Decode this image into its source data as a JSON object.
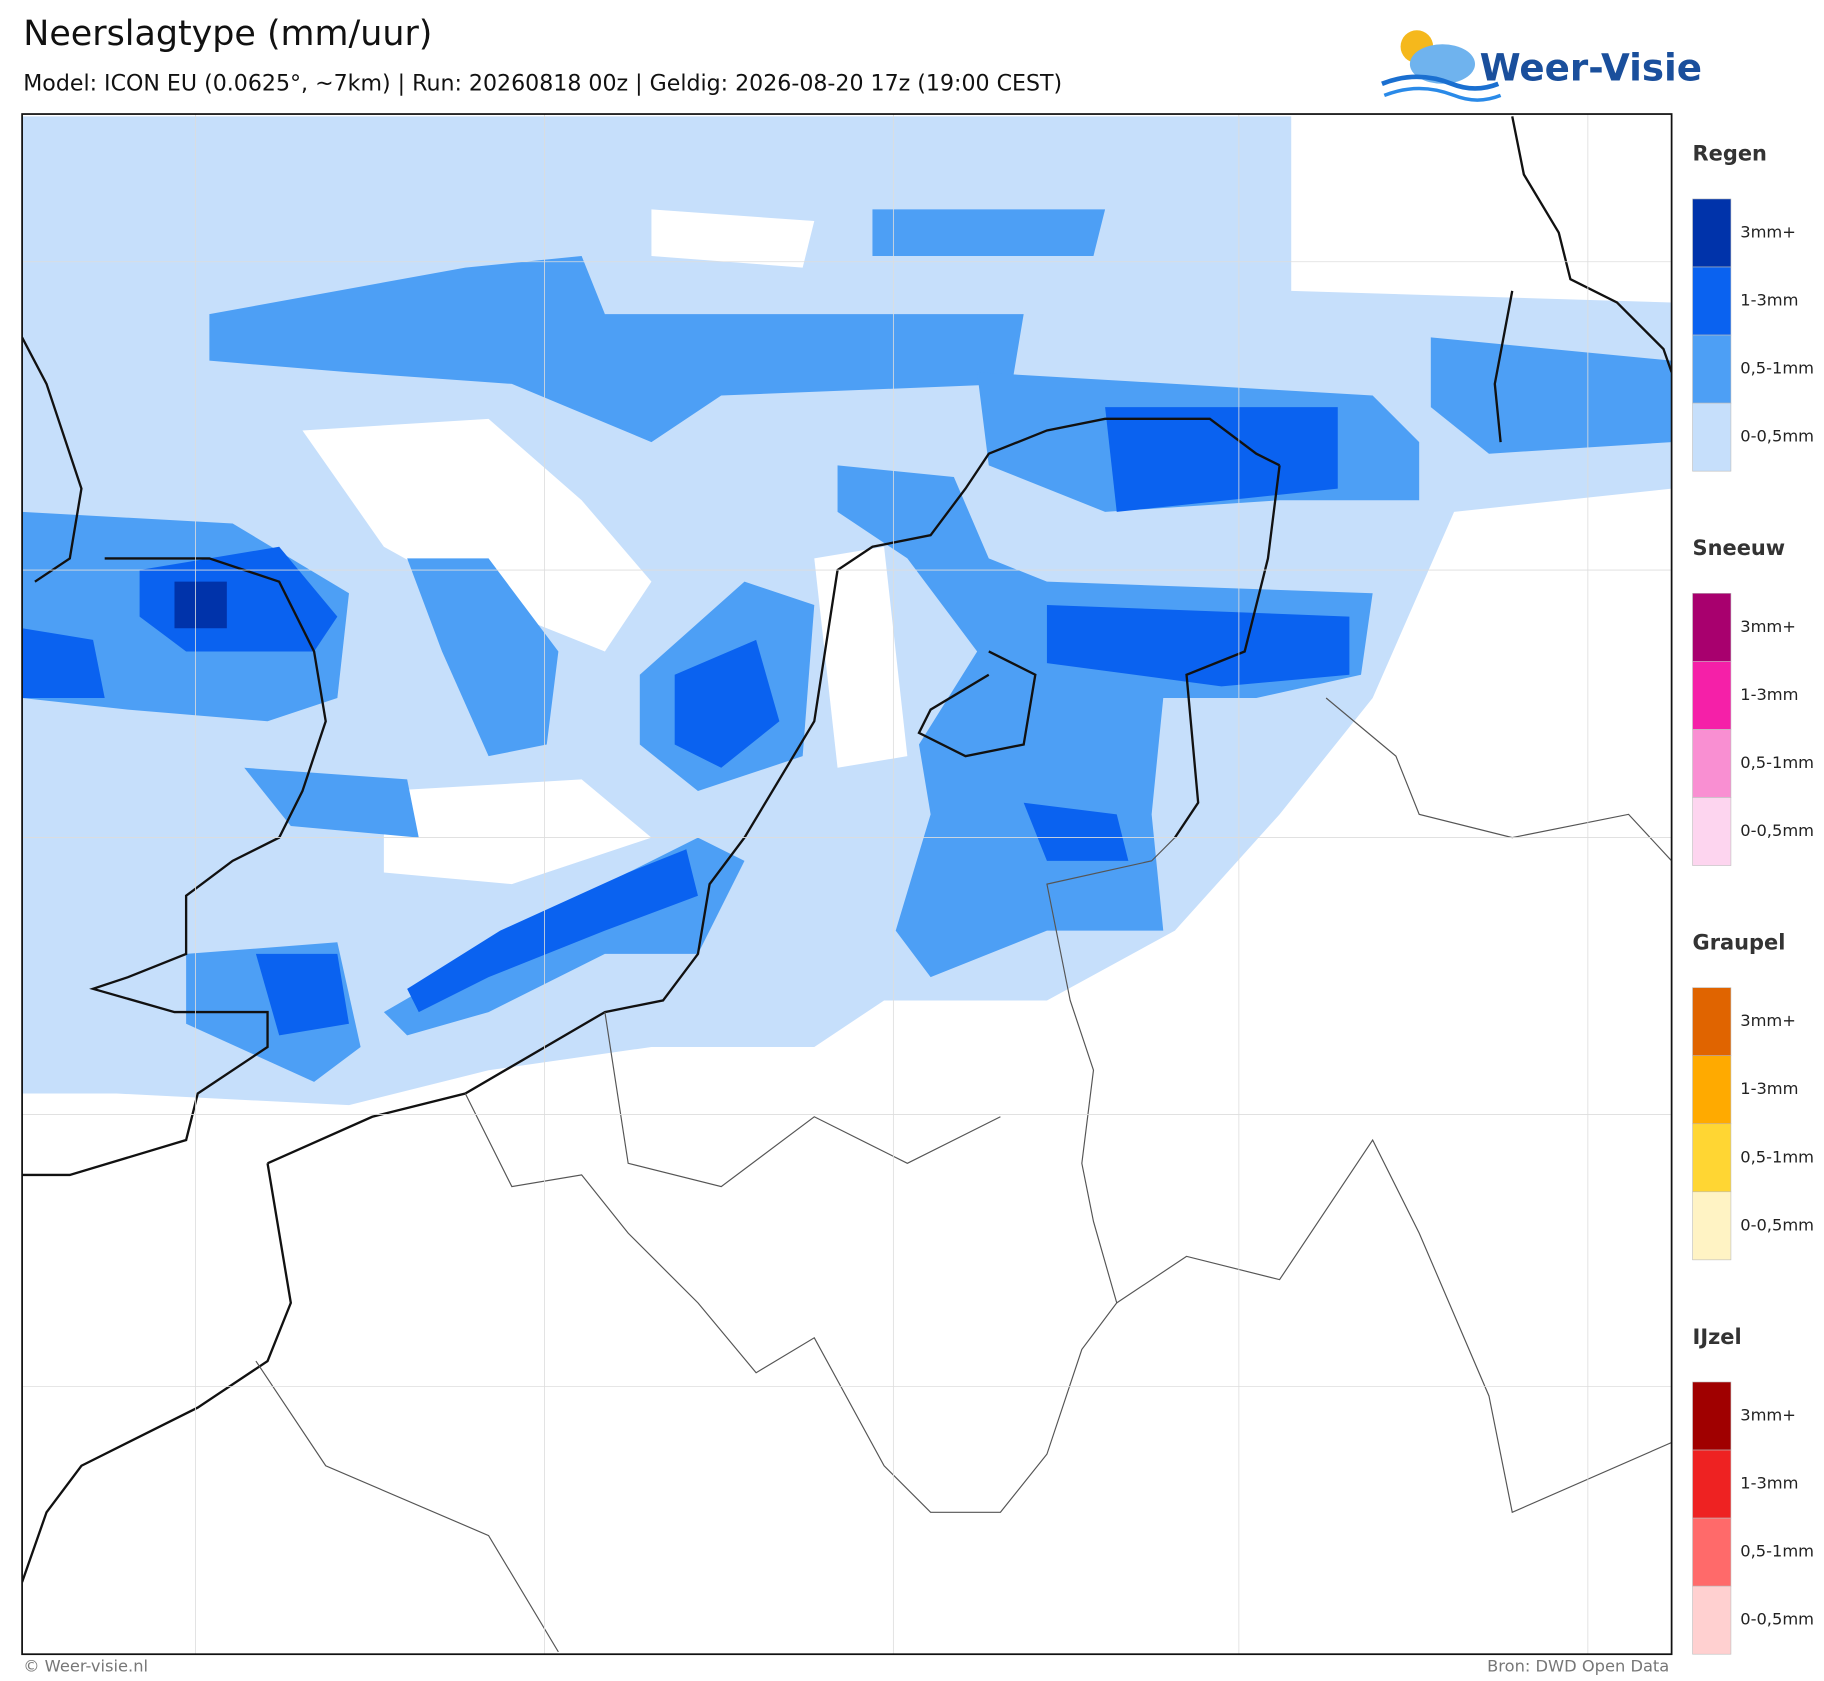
{
  "header": {
    "title": "Neerslagtype (mm/uur)",
    "subtitle": "Model: ICON EU (0.0625°, ~7km)  |  Run: 20260818 00z  |  Geldig: 2026-08-20 17z (19:00 CEST)"
  },
  "logo": {
    "text": "Weer-Visie"
  },
  "legend": {
    "groups": [
      {
        "title": "Regen",
        "items": [
          {
            "label": "3mm+",
            "color": "#0033aa"
          },
          {
            "label": "1-3mm",
            "color": "#0a62f0"
          },
          {
            "label": "0,5-1mm",
            "color": "#4d9ff5"
          },
          {
            "label": "0-0,5mm",
            "color": "#c6dffb"
          }
        ]
      },
      {
        "title": "Sneeuw",
        "items": [
          {
            "label": "3mm+",
            "color": "#a8006e"
          },
          {
            "label": "1-3mm",
            "color": "#f520a8"
          },
          {
            "label": "0,5-1mm",
            "color": "#f98fd2"
          },
          {
            "label": "0-0,5mm",
            "color": "#fdd5ef"
          }
        ]
      },
      {
        "title": "Graupel",
        "items": [
          {
            "label": "3mm+",
            "color": "#e06400"
          },
          {
            "label": "1-3mm",
            "color": "#ffaa00"
          },
          {
            "label": "0,5-1mm",
            "color": "#ffd633"
          },
          {
            "label": "0-0,5mm",
            "color": "#fff3c4"
          }
        ]
      },
      {
        "title": "IJzel",
        "items": [
          {
            "label": "3mm+",
            "color": "#a00000"
          },
          {
            "label": "1-3mm",
            "color": "#ee2222"
          },
          {
            "label": "0,5-1mm",
            "color": "#ff6a6a"
          },
          {
            "label": "0-0,5mm",
            "color": "#ffd0d0"
          }
        ]
      }
    ]
  },
  "footer": {
    "left": "© Weer-visie.nl",
    "right": "Bron: DWD Open Data"
  }
}
